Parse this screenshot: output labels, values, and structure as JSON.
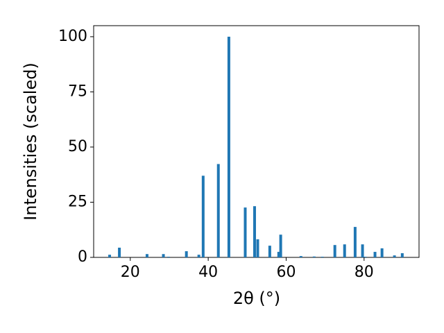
{
  "chart_data": {
    "type": "bar",
    "xlabel": "2θ (°)",
    "ylabel": "Intensities (scaled)",
    "x": [
      14.7,
      17.2,
      24.3,
      28.5,
      29.8,
      34.4,
      37.6,
      38.7,
      42.6,
      45.3,
      49.5,
      51.9,
      52.7,
      55.8,
      58.1,
      58.6,
      63.8,
      67.2,
      69.3,
      72.5,
      75.0,
      77.7,
      79.6,
      80.3,
      82.8,
      84.6,
      87.8,
      89.8
    ],
    "values": [
      1.2,
      4.4,
      1.5,
      1.5,
      0.3,
      2.8,
      1.2,
      37,
      42.3,
      100,
      22.6,
      23.2,
      8.2,
      5.3,
      2.5,
      10.3,
      0.6,
      0.4,
      0.3,
      5.6,
      5.9,
      13.8,
      5.9,
      0.3,
      2.5,
      4.1,
      0.9,
      1.9
    ],
    "color": "#1f77b4",
    "xlim": [
      10.6,
      94.1
    ],
    "xticks": [
      20,
      40,
      60,
      80
    ],
    "ylim": [
      0,
      105
    ],
    "yticks": [
      0,
      25,
      50,
      75,
      100
    ]
  }
}
